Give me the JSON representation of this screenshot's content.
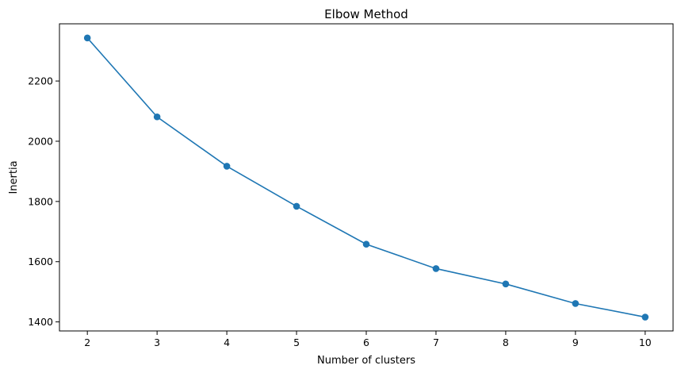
{
  "chart_data": {
    "type": "line",
    "title": "Elbow Method",
    "xlabel": "Number of clusters",
    "ylabel": "Inertia",
    "x": [
      2,
      3,
      4,
      5,
      6,
      7,
      8,
      9,
      10
    ],
    "series": [
      {
        "values": [
          2343,
          2081,
          1917,
          1784,
          1658,
          1577,
          1526,
          1461,
          1416
        ],
        "color": "#1f77b4",
        "marker": "circle"
      }
    ],
    "xticks": [
      2,
      3,
      4,
      5,
      6,
      7,
      8,
      9,
      10
    ],
    "yticks": [
      1400,
      1600,
      1800,
      2000,
      2200
    ],
    "xlim": [
      1.6,
      10.4
    ],
    "ylim": [
      1370,
      2390
    ],
    "grid": false,
    "legend": false
  }
}
